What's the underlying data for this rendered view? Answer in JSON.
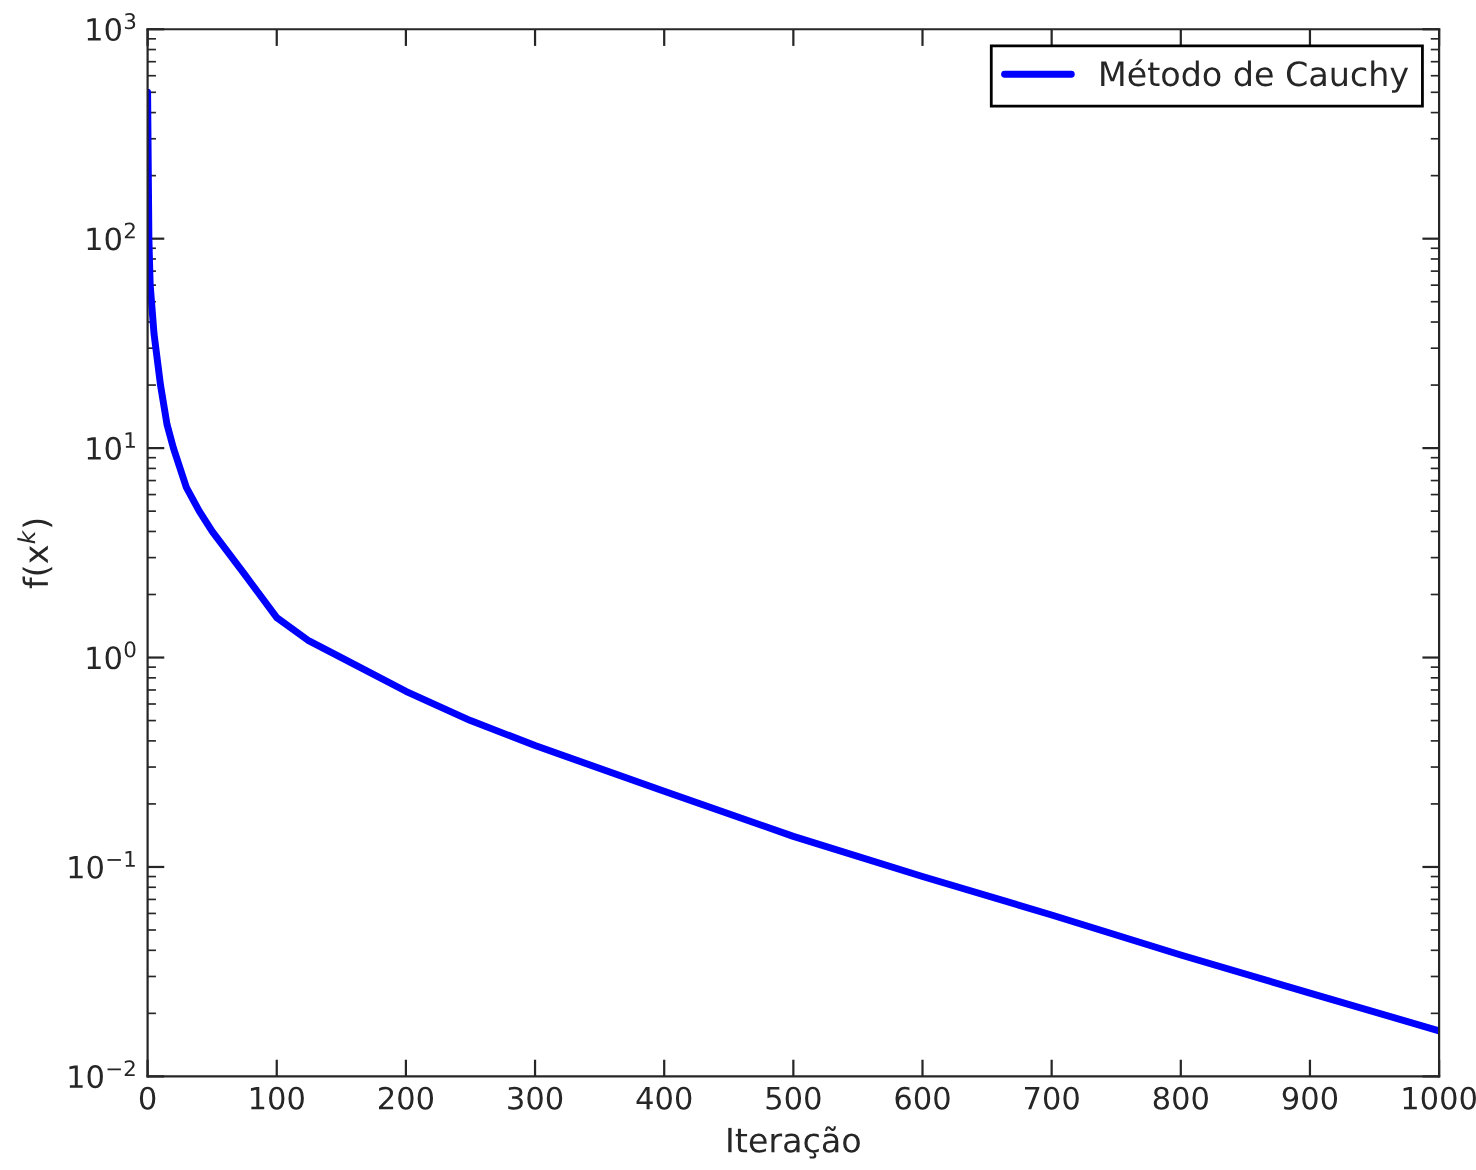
{
  "chart_data": {
    "type": "line",
    "xlabel": "Iteração",
    "ylabel": "f(x$^{k}$)",
    "x": [
      0,
      1,
      2,
      5,
      10,
      15,
      20,
      30,
      40,
      50,
      75,
      100,
      125,
      150,
      200,
      250,
      300,
      400,
      500,
      600,
      700,
      800,
      900,
      1000
    ],
    "series": [
      {
        "name": "Método de Cauchy",
        "color": "#0000ff",
        "values": [
          500,
          100,
          60,
          35,
          20,
          13,
          10,
          6.5,
          5,
          4,
          2.5,
          1.55,
          1.2,
          1.0,
          0.69,
          0.5,
          0.38,
          0.23,
          0.14,
          0.09,
          0.059,
          0.038,
          0.025,
          0.0165
        ]
      }
    ],
    "log": "y",
    "xlim": [
      0,
      1000
    ],
    "xticks": [
      0,
      100,
      200,
      300,
      400,
      500,
      600,
      700,
      800,
      900,
      1000
    ],
    "ylim": [
      0.01,
      1000
    ],
    "yticks": [
      {
        "value": 0.01,
        "label": "10$^{−2}$"
      },
      {
        "value": 0.1,
        "label": "10$^{−1}$"
      },
      {
        "value": 1,
        "label": "10$^{0}$"
      },
      {
        "value": 10,
        "label": "10$^{1}$"
      },
      {
        "value": 100,
        "label": "10$^{2}$"
      },
      {
        "value": 1000,
        "label": "10$^{3}$"
      }
    ],
    "legend": "top right",
    "grid": false,
    "line_style": "solid",
    "marker": "none"
  }
}
